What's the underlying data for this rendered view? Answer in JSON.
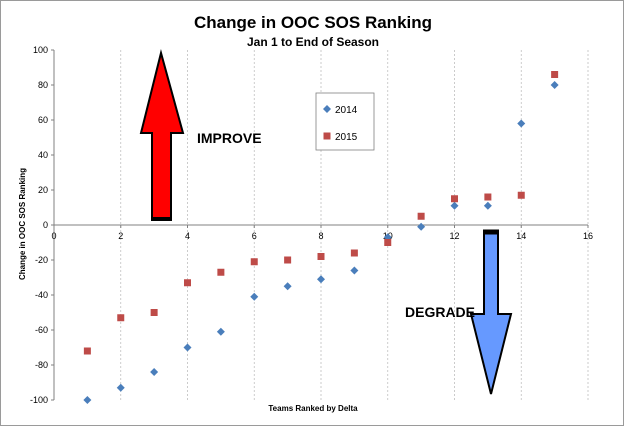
{
  "chart_data": {
    "type": "scatter",
    "title": "Change in OOC SOS Ranking",
    "subtitle": "Jan 1 to End of Season",
    "xlabel": "Teams Ranked by Delta",
    "ylabel": "Change in OOC SOS Ranking",
    "xlim": [
      0,
      16
    ],
    "ylim": [
      -100,
      100
    ],
    "x_ticks": [
      0,
      2,
      4,
      6,
      8,
      10,
      12,
      14,
      16
    ],
    "y_ticks": [
      -100,
      -80,
      -60,
      -40,
      -20,
      0,
      20,
      40,
      60,
      80,
      100
    ],
    "grid": "vertical",
    "legend_position": "center",
    "series": [
      {
        "name": "2014",
        "marker": "diamond",
        "color": "#4a7ebb",
        "x": [
          1,
          2,
          3,
          4,
          5,
          6,
          7,
          8,
          9,
          10,
          11,
          12,
          13,
          14,
          15
        ],
        "y": [
          -100,
          -93,
          -84,
          -70,
          -61,
          -41,
          -35,
          -31,
          -26,
          -7,
          -1,
          11,
          11,
          58,
          80
        ]
      },
      {
        "name": "2015",
        "marker": "square",
        "color": "#be4b48",
        "x": [
          1,
          2,
          3,
          4,
          5,
          6,
          7,
          8,
          9,
          10,
          11,
          12,
          13,
          14,
          15
        ],
        "y": [
          -72,
          -53,
          -50,
          -33,
          -27,
          -21,
          -20,
          -18,
          -16,
          -10,
          5,
          15,
          16,
          17,
          86
        ]
      }
    ],
    "annotations": [
      {
        "text": "IMPROVE",
        "arrow": "up",
        "color": "#ff0000"
      },
      {
        "text": "DEGRADE",
        "arrow": "down",
        "color": "#6699ff"
      }
    ]
  }
}
